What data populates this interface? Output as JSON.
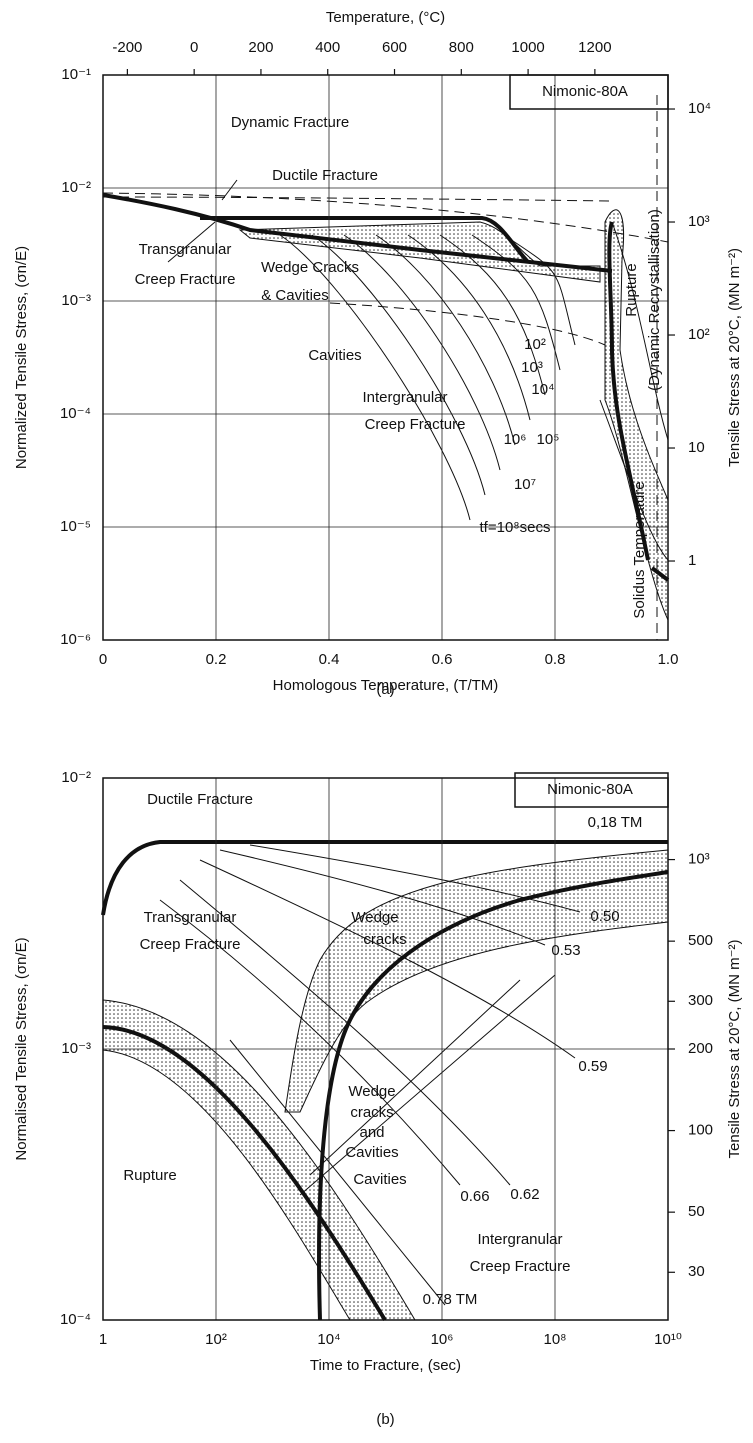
{
  "chart_data": [
    {
      "type": "map",
      "label": "(a)",
      "xlabel": "Homologous Temperature, (T/TM)",
      "ylabel": "Normalized Tensile Stress, (σn/E)",
      "x2label": "Temperature, (°C)",
      "y2label": "Tensile Stress at 20°C, (MN m⁻²)",
      "xlim": [
        0,
        1
      ],
      "xticks": [
        0,
        0.2,
        0.4,
        0.6,
        0.8,
        {
          "value": 1,
          "label": "1.0"
        }
      ],
      "ylim": [
        1e-06,
        0.1
      ],
      "yscale": "log",
      "yticks": [
        {
          "value": 1e-06,
          "label": "10⁻⁶"
        },
        {
          "value": 1e-05,
          "label": "10⁻⁵"
        },
        {
          "value": 0.0001,
          "label": "10⁻⁴"
        },
        {
          "value": 0.001,
          "label": "10⁻³"
        },
        {
          "value": 0.01,
          "label": "10⁻²"
        },
        {
          "value": 0.1,
          "label": "10⁻¹"
        }
      ],
      "x2lim": [
        -273,
        1419
      ],
      "x2ticks": [
        -200,
        0,
        200,
        400,
        600,
        800,
        1000,
        1200
      ],
      "y2lim": [
        0.2,
        20000
      ],
      "y2scale": "log",
      "y2ticks": [
        1,
        10,
        {
          "value": 100,
          "label": "10²"
        },
        {
          "value": 1000,
          "label": "10³"
        },
        {
          "value": 10000,
          "label": "10⁴"
        }
      ],
      "grid": true,
      "annotations": [
        "Dynamic Fracture",
        "Ductile Fracture",
        "Transgranular",
        "Creep Fracture",
        "Wedge Cracks",
        "& Cavities",
        "Cavities",
        "Intergranular",
        "Creep Fracture",
        "Rupture",
        "(Dynamic Recrystallisation)",
        "Solidus Temperature",
        "10²",
        "10³",
        "10⁴",
        "10⁵",
        "10⁶",
        "10⁷",
        "tf=10⁸secs",
        "Nimonic-80A"
      ]
    },
    {
      "type": "map",
      "label": "(b)",
      "xlabel": "Time to Fracture, (sec)",
      "ylabel": "Normalised Tensile Stress, (σn/E)",
      "y2label": "Tensile Stress at 20°C, (MN m⁻²)",
      "xlim": [
        1,
        10000000000
      ],
      "xscale": "log",
      "xticks": [
        1,
        {
          "value": 100,
          "label": "10²"
        },
        {
          "value": 10000,
          "label": "10⁴"
        },
        {
          "value": 1000000,
          "label": "10⁶"
        },
        {
          "value": 100000000,
          "label": "10⁸"
        },
        {
          "value": 10000000000,
          "label": "10¹⁰"
        }
      ],
      "ylim": [
        0.0001,
        0.01
      ],
      "yscale": "log",
      "yticks": [
        {
          "value": 0.0001,
          "label": "10⁻⁴"
        },
        {
          "value": 0.001,
          "label": "10⁻³"
        },
        {
          "value": 0.01,
          "label": "10⁻²"
        }
      ],
      "y2lim": [
        20,
        2000
      ],
      "y2scale": "log",
      "y2ticks": [
        30,
        50,
        100,
        200,
        300,
        500,
        {
          "value": 1000,
          "label": "10³"
        }
      ],
      "grid": true,
      "annotations": [
        "Ductile Fracture",
        "Nimonic-80A",
        "0,18 TM",
        "Transgranular",
        "Creep Fracture",
        "Wedge",
        "cracks",
        "Wedge",
        "cracks",
        "and",
        "Cavities",
        "Cavities",
        "Rupture",
        "Intergranular",
        "Creep Fracture",
        "0.50",
        "0.53",
        "0.59",
        "0.62",
        "0.66",
        "0.78 TM"
      ]
    }
  ]
}
